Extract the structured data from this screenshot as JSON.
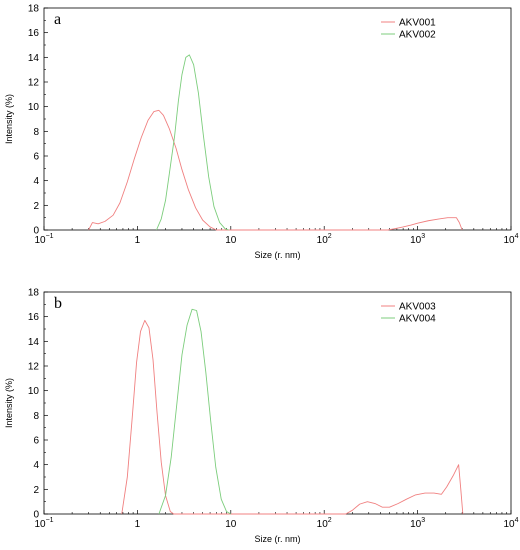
{
  "chart_data": [
    {
      "type": "line",
      "panel_label": "a",
      "xlabel": "Size (r. nm)",
      "ylabel": "Intensity (%)",
      "xscale": "log",
      "xlim": [
        0.1,
        10000
      ],
      "ylim": [
        0,
        18
      ],
      "yticks": [
        0,
        2,
        4,
        6,
        8,
        10,
        12,
        14,
        16,
        18
      ],
      "xticks": [
        {
          "base": "10",
          "exp": "−1",
          "value": 0.1
        },
        {
          "base": "1",
          "exp": "",
          "value": 1
        },
        {
          "base": "10",
          "exp": "",
          "value": 10
        },
        {
          "base": "10",
          "exp": "2",
          "value": 100
        },
        {
          "base": "10",
          "exp": "3",
          "value": 1000
        },
        {
          "base": "10",
          "exp": "4",
          "value": 10000
        }
      ],
      "grid": false,
      "legend_position": "top-right",
      "series": [
        {
          "name": "AKV001",
          "color": "#f08080",
          "points": [
            [
              0.3,
              0
            ],
            [
              0.33,
              0.6
            ],
            [
              0.38,
              0.5
            ],
            [
              0.45,
              0.7
            ],
            [
              0.55,
              1.2
            ],
            [
              0.65,
              2.2
            ],
            [
              0.78,
              3.9
            ],
            [
              0.92,
              5.7
            ],
            [
              1.1,
              7.5
            ],
            [
              1.3,
              8.9
            ],
            [
              1.5,
              9.6
            ],
            [
              1.7,
              9.7
            ],
            [
              1.9,
              9.3
            ],
            [
              2.2,
              8.2
            ],
            [
              2.6,
              6.6
            ],
            [
              3.0,
              4.9
            ],
            [
              3.5,
              3.3
            ],
            [
              4.2,
              1.8
            ],
            [
              5.0,
              0.8
            ],
            [
              6.0,
              0.25
            ],
            [
              7.0,
              0
            ],
            [
              480,
              0
            ],
            [
              560,
              0.1
            ],
            [
              700,
              0.25
            ],
            [
              850,
              0.4
            ],
            [
              1000,
              0.55
            ],
            [
              1300,
              0.75
            ],
            [
              1700,
              0.9
            ],
            [
              2100,
              1.0
            ],
            [
              2600,
              1.0
            ],
            [
              2800,
              0.6
            ],
            [
              3000,
              0
            ]
          ]
        },
        {
          "name": "AKV002",
          "color": "#7ccd7c",
          "points": [
            [
              1.6,
              0
            ],
            [
              1.8,
              0.9
            ],
            [
              2.0,
              2.4
            ],
            [
              2.2,
              4.6
            ],
            [
              2.5,
              7.6
            ],
            [
              2.75,
              10.5
            ],
            [
              3.0,
              12.6
            ],
            [
              3.3,
              14.0
            ],
            [
              3.6,
              14.2
            ],
            [
              4.0,
              13.4
            ],
            [
              4.5,
              11.1
            ],
            [
              5.1,
              7.6
            ],
            [
              5.8,
              4.3
            ],
            [
              6.6,
              1.9
            ],
            [
              7.6,
              0.6
            ],
            [
              8.7,
              0.1
            ],
            [
              9.5,
              0
            ]
          ]
        }
      ]
    },
    {
      "type": "line",
      "panel_label": "b",
      "xlabel": "Size (r. nm)",
      "ylabel": "Intensity (%)",
      "xscale": "log",
      "xlim": [
        0.1,
        10000
      ],
      "ylim": [
        0,
        18
      ],
      "yticks": [
        0,
        2,
        4,
        6,
        8,
        10,
        12,
        14,
        16,
        18
      ],
      "xticks": [
        {
          "base": "10",
          "exp": "−1",
          "value": 0.1
        },
        {
          "base": "1",
          "exp": "",
          "value": 1
        },
        {
          "base": "10",
          "exp": "",
          "value": 10
        },
        {
          "base": "10",
          "exp": "2",
          "value": 100
        },
        {
          "base": "10",
          "exp": "3",
          "value": 1000
        },
        {
          "base": "10",
          "exp": "4",
          "value": 10000
        }
      ],
      "grid": false,
      "legend_position": "top-right",
      "series": [
        {
          "name": "AKV003",
          "color": "#f08080",
          "points": [
            [
              0.68,
              0
            ],
            [
              0.78,
              3.0
            ],
            [
              0.88,
              7.8
            ],
            [
              0.98,
              12.3
            ],
            [
              1.08,
              14.8
            ],
            [
              1.2,
              15.7
            ],
            [
              1.33,
              15.1
            ],
            [
              1.47,
              12.5
            ],
            [
              1.62,
              8.3
            ],
            [
              1.8,
              4.2
            ],
            [
              2.0,
              1.5
            ],
            [
              2.25,
              0.2
            ],
            [
              2.45,
              0
            ],
            [
              170,
              0
            ],
            [
              200,
              0.3
            ],
            [
              240,
              0.8
            ],
            [
              290,
              1.0
            ],
            [
              350,
              0.85
            ],
            [
              420,
              0.55
            ],
            [
              500,
              0.55
            ],
            [
              620,
              0.85
            ],
            [
              760,
              1.2
            ],
            [
              950,
              1.55
            ],
            [
              1200,
              1.7
            ],
            [
              1500,
              1.7
            ],
            [
              1800,
              1.6
            ],
            [
              2050,
              2.2
            ],
            [
              2400,
              3.1
            ],
            [
              2750,
              4.0
            ],
            [
              2900,
              2.0
            ],
            [
              3050,
              0
            ]
          ]
        },
        {
          "name": "AKV004",
          "color": "#7ccd7c",
          "points": [
            [
              1.7,
              0
            ],
            [
              2.0,
              1.5
            ],
            [
              2.3,
              4.6
            ],
            [
              2.65,
              9.0
            ],
            [
              3.0,
              12.9
            ],
            [
              3.4,
              15.3
            ],
            [
              3.85,
              16.6
            ],
            [
              4.3,
              16.5
            ],
            [
              4.8,
              14.8
            ],
            [
              5.4,
              11.5
            ],
            [
              6.1,
              7.5
            ],
            [
              6.9,
              3.8
            ],
            [
              7.9,
              1.2
            ],
            [
              9.0,
              0.2
            ],
            [
              10.0,
              0
            ]
          ]
        }
      ]
    }
  ]
}
